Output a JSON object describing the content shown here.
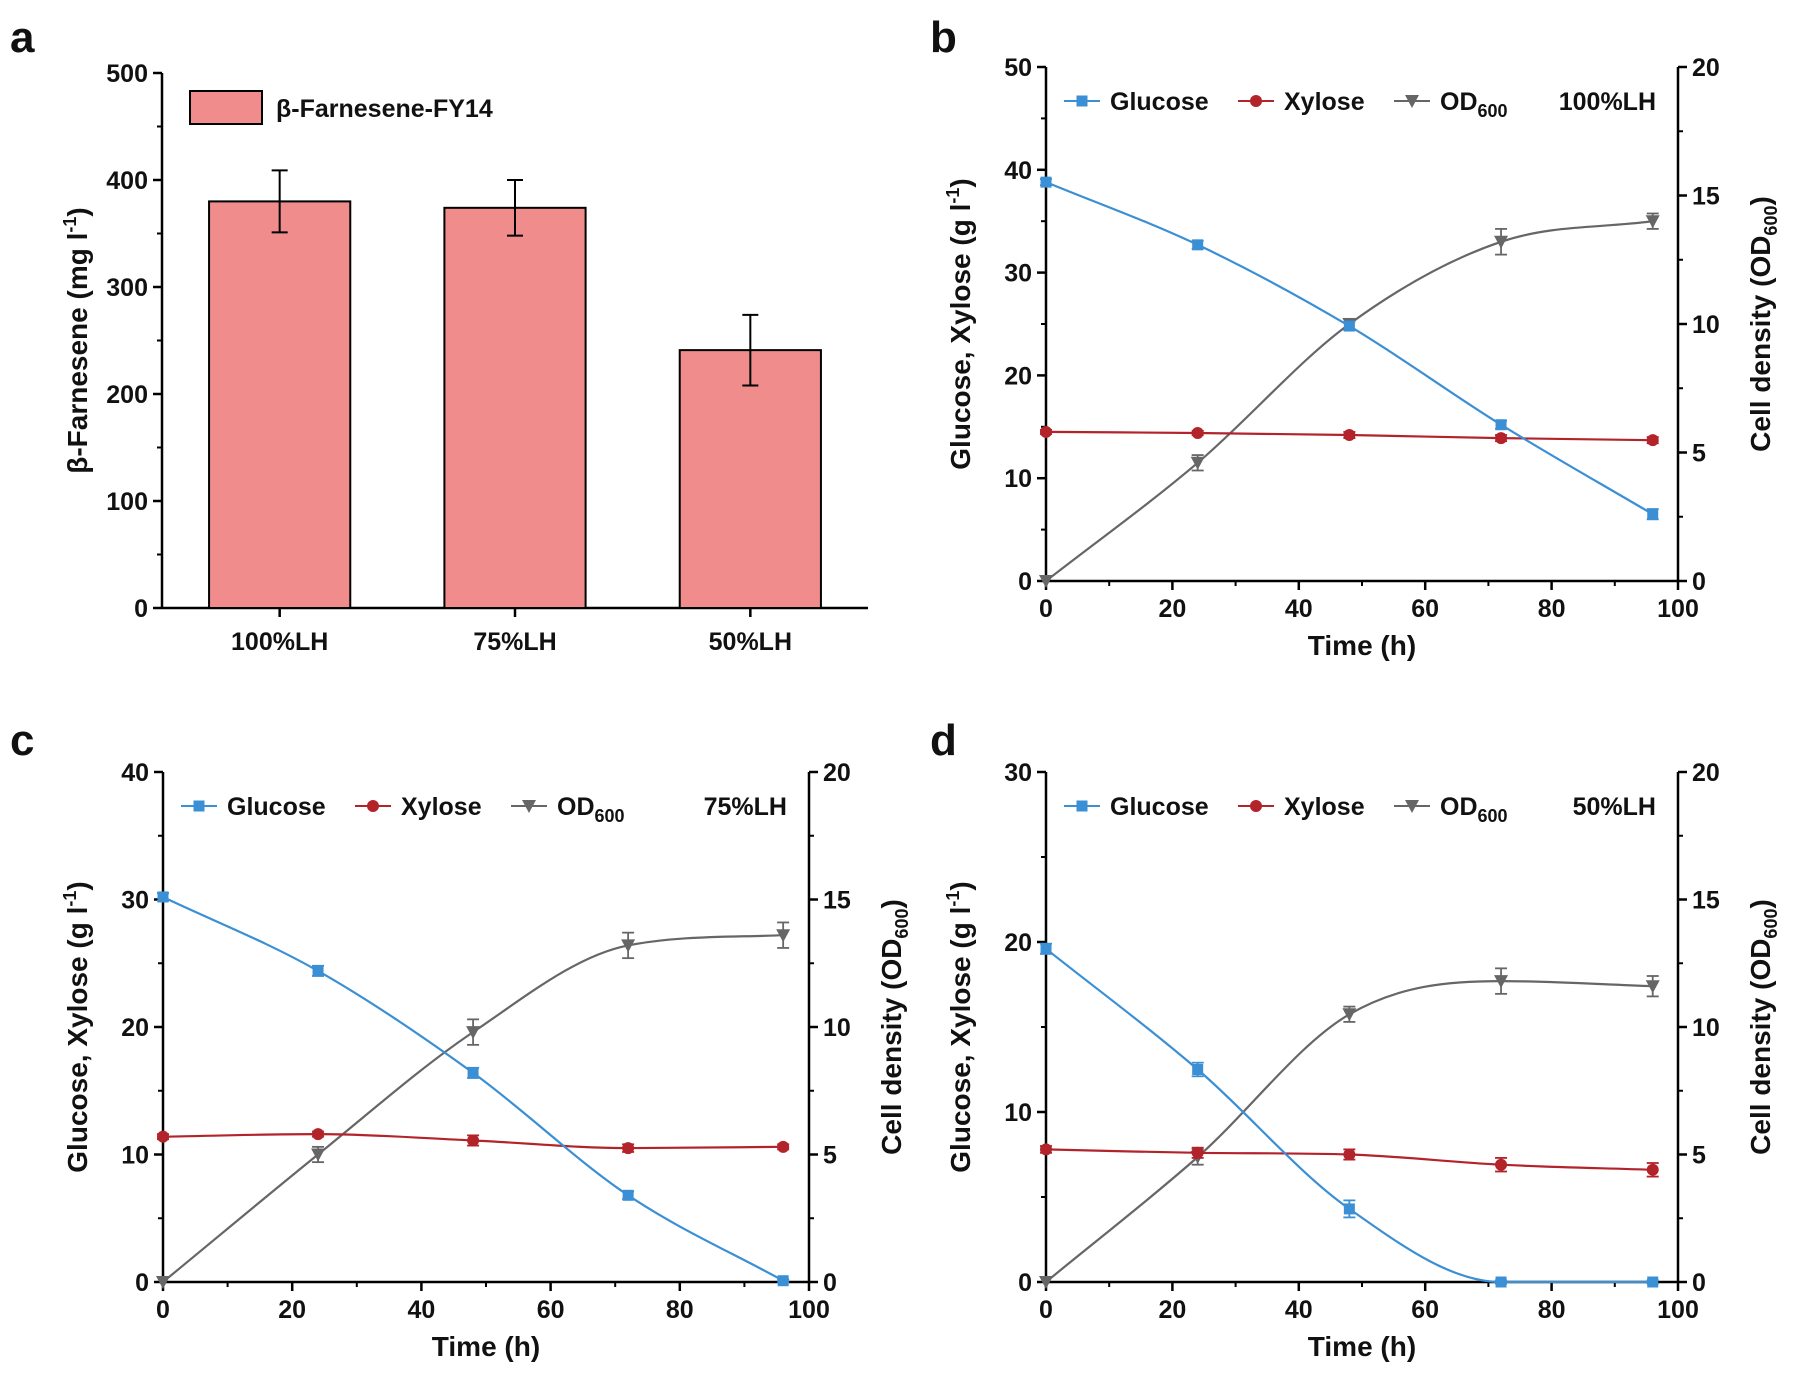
{
  "figure": {
    "colors": {
      "glucose": "#3b8fd4",
      "xylose": "#b3232a",
      "od600": "#666666",
      "bar_fill": "#f08c8c"
    }
  },
  "chart_data": [
    {
      "panel": "a",
      "type": "bar",
      "categories": [
        "100%LH",
        "75%LH",
        "50%LH"
      ],
      "series": [
        {
          "name": "β-Farnesene-FY14",
          "values": [
            380,
            374,
            241
          ],
          "errors": [
            29,
            26,
            33
          ]
        }
      ],
      "ylabel": "β-Farnesene (mg l",
      "ylabel_sup": "-1",
      "ylabel_end": ")",
      "ylim": [
        0,
        500
      ],
      "yticks": [
        0,
        100,
        200,
        300,
        400,
        500
      ],
      "legend": "top-left"
    },
    {
      "panel": "b",
      "type": "line",
      "tag": "100%LH",
      "xlabel": "Time (h)",
      "ylabel": "Glucose, Xylose (g l",
      "ylabel_sup": "-1",
      "ylabel_end": ")",
      "y2label": "Cell density (OD",
      "y2label_sub": "600",
      "y2label_end": ")",
      "xlim": [
        0,
        100
      ],
      "xticks": [
        0,
        20,
        40,
        60,
        80,
        100
      ],
      "ylim": [
        0,
        50
      ],
      "yticks": [
        0,
        10,
        20,
        30,
        40,
        50
      ],
      "y2lim": [
        0,
        20
      ],
      "y2ticks": [
        0,
        5,
        10,
        15,
        20
      ],
      "x": [
        0,
        24,
        48,
        72,
        96
      ],
      "series": [
        {
          "name": "Glucose",
          "axis": "left",
          "marker": "square",
          "values": [
            38.8,
            32.7,
            24.8,
            15.2,
            6.5
          ],
          "errors": [
            0.3,
            0.4,
            0.4,
            0.4,
            0.5
          ]
        },
        {
          "name": "Xylose",
          "axis": "left",
          "marker": "circle",
          "values": [
            14.5,
            14.4,
            14.2,
            13.9,
            13.7
          ],
          "errors": [
            0.2,
            0.2,
            0.3,
            0.3,
            0.3
          ]
        },
        {
          "name": "OD",
          "sub": "600",
          "axis": "right",
          "marker": "triangle-down",
          "values": [
            0,
            4.6,
            10.0,
            13.2,
            14.0
          ],
          "errors": [
            0,
            0.3,
            0.2,
            0.5,
            0.3
          ]
        }
      ]
    },
    {
      "panel": "c",
      "type": "line",
      "tag": "75%LH",
      "xlabel": "Time (h)",
      "ylabel": "Glucose, Xylose (g l",
      "ylabel_sup": "-1",
      "ylabel_end": ")",
      "y2label": "Cell density (OD",
      "y2label_sub": "600",
      "y2label_end": ")",
      "xlim": [
        0,
        100
      ],
      "xticks": [
        0,
        20,
        40,
        60,
        80,
        100
      ],
      "ylim": [
        0,
        40
      ],
      "yticks": [
        0,
        10,
        20,
        30,
        40
      ],
      "y2lim": [
        0,
        20
      ],
      "y2ticks": [
        0,
        5,
        10,
        15,
        20
      ],
      "x": [
        0,
        24,
        48,
        72,
        96
      ],
      "series": [
        {
          "name": "Glucose",
          "axis": "left",
          "marker": "square",
          "values": [
            30.2,
            24.4,
            16.4,
            6.8,
            0.1
          ],
          "errors": [
            0.3,
            0.4,
            0.4,
            0.3,
            0.1
          ]
        },
        {
          "name": "Xylose",
          "axis": "left",
          "marker": "circle",
          "values": [
            11.4,
            11.6,
            11.1,
            10.5,
            10.6
          ],
          "errors": [
            0.2,
            0.2,
            0.4,
            0.3,
            0.2
          ]
        },
        {
          "name": "OD",
          "sub": "600",
          "axis": "right",
          "marker": "triangle-down",
          "values": [
            0,
            5.0,
            9.8,
            13.2,
            13.6
          ],
          "errors": [
            0,
            0.3,
            0.5,
            0.5,
            0.5
          ]
        }
      ]
    },
    {
      "panel": "d",
      "type": "line",
      "tag": "50%LH",
      "xlabel": "Time (h)",
      "ylabel": "Glucose, Xylose (g l",
      "ylabel_sup": "-1",
      "ylabel_end": ")",
      "y2label": "Cell density (OD",
      "y2label_sub": "600",
      "y2label_end": ")",
      "xlim": [
        0,
        100
      ],
      "xticks": [
        0,
        20,
        40,
        60,
        80,
        100
      ],
      "ylim": [
        0,
        30
      ],
      "yticks": [
        0,
        10,
        20,
        30
      ],
      "y2lim": [
        0,
        20
      ],
      "y2ticks": [
        0,
        5,
        10,
        15,
        20
      ],
      "x": [
        0,
        24,
        48,
        72,
        96
      ],
      "series": [
        {
          "name": "Glucose",
          "axis": "left",
          "marker": "square",
          "values": [
            19.6,
            12.5,
            4.3,
            0.0,
            0.0
          ],
          "errors": [
            0.3,
            0.4,
            0.5,
            0.1,
            0.1
          ]
        },
        {
          "name": "Xylose",
          "axis": "left",
          "marker": "circle",
          "values": [
            7.8,
            7.6,
            7.5,
            6.9,
            6.6
          ],
          "errors": [
            0.2,
            0.3,
            0.3,
            0.4,
            0.4
          ]
        },
        {
          "name": "OD",
          "sub": "600",
          "axis": "right",
          "marker": "triangle-down",
          "values": [
            0,
            4.9,
            10.5,
            11.8,
            11.6
          ],
          "errors": [
            0,
            0.3,
            0.3,
            0.5,
            0.4
          ]
        }
      ]
    }
  ]
}
